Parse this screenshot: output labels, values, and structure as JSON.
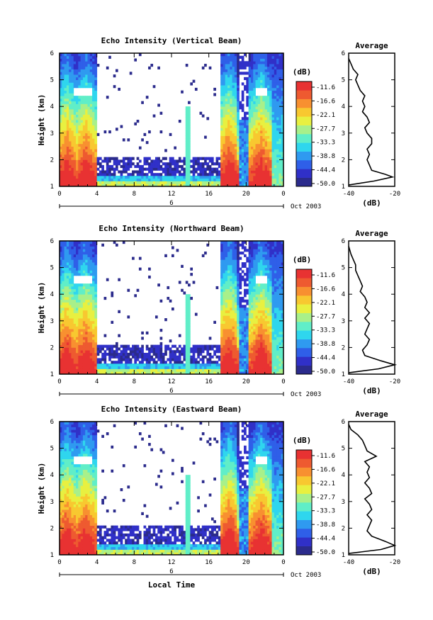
{
  "chart_data": [
    {
      "type": "heatmap",
      "title": "Echo Intensity (Vertical Beam)",
      "ylabel": "Height (km)",
      "xlim": [
        0,
        24
      ],
      "ylim": [
        1,
        6
      ],
      "x_ticks": [
        "0",
        "4",
        "8",
        "12",
        "16",
        "20",
        "0"
      ],
      "y_ticks": [
        "1",
        "2",
        "3",
        "4",
        "5",
        "6"
      ],
      "date_day": "6",
      "date_label": "Oct 2003",
      "colorbar": {
        "unit": "(dB)",
        "ticks": [
          "-11.6",
          "-16.6",
          "-22.1",
          "-27.7",
          "-33.3",
          "-38.8",
          "-44.4",
          "-50.0"
        ]
      },
      "average": {
        "title": "Average",
        "xlabel": "(dB)",
        "x_ticks": [
          "-40",
          "-20"
        ],
        "y_ticks": [
          "1",
          "2",
          "3",
          "4",
          "5",
          "6"
        ],
        "profile": [
          [
            1.05,
            -40
          ],
          [
            1.2,
            -29
          ],
          [
            1.35,
            -21
          ],
          [
            1.45,
            -24
          ],
          [
            1.6,
            -30
          ],
          [
            1.8,
            -31
          ],
          [
            2.0,
            -32
          ],
          [
            2.2,
            -31
          ],
          [
            2.4,
            -32
          ],
          [
            2.6,
            -30
          ],
          [
            2.8,
            -30
          ],
          [
            3.0,
            -32
          ],
          [
            3.2,
            -33
          ],
          [
            3.4,
            -31
          ],
          [
            3.6,
            -32
          ],
          [
            3.8,
            -34
          ],
          [
            4.0,
            -33
          ],
          [
            4.2,
            -34
          ],
          [
            4.4,
            -33
          ],
          [
            4.6,
            -35
          ],
          [
            4.8,
            -36
          ],
          [
            5.0,
            -37
          ],
          [
            5.2,
            -36
          ],
          [
            5.4,
            -38
          ],
          [
            5.6,
            -39
          ],
          [
            5.8,
            -40
          ]
        ]
      }
    },
    {
      "type": "heatmap",
      "title": "Echo Intensity (Northward Beam)",
      "ylabel": "Height (km)",
      "xlim": [
        0,
        24
      ],
      "ylim": [
        1,
        6
      ],
      "x_ticks": [
        "0",
        "4",
        "8",
        "12",
        "16",
        "20",
        "0"
      ],
      "y_ticks": [
        "1",
        "2",
        "3",
        "4",
        "5",
        "6"
      ],
      "date_day": "6",
      "date_label": "Oct 2003",
      "colorbar": {
        "unit": "(dB)",
        "ticks": [
          "-11.6",
          "-16.6",
          "-22.1",
          "-27.7",
          "-33.3",
          "-38.8",
          "-44.4",
          "-50.0"
        ]
      },
      "average": {
        "title": "Average",
        "xlabel": "(dB)",
        "x_ticks": [
          "-40",
          "-20"
        ],
        "y_ticks": [
          "1",
          "2",
          "3",
          "4",
          "5",
          "6"
        ],
        "profile": [
          [
            1.05,
            -40
          ],
          [
            1.2,
            -27
          ],
          [
            1.35,
            -20
          ],
          [
            1.5,
            -26
          ],
          [
            1.7,
            -33
          ],
          [
            1.9,
            -34
          ],
          [
            2.1,
            -32
          ],
          [
            2.3,
            -31
          ],
          [
            2.5,
            -33
          ],
          [
            2.7,
            -32
          ],
          [
            2.9,
            -31
          ],
          [
            3.1,
            -33
          ],
          [
            3.3,
            -31
          ],
          [
            3.5,
            -33
          ],
          [
            3.7,
            -32
          ],
          [
            3.9,
            -33
          ],
          [
            4.1,
            -35
          ],
          [
            4.3,
            -34
          ],
          [
            4.5,
            -35
          ],
          [
            4.7,
            -36
          ],
          [
            4.9,
            -37
          ],
          [
            5.1,
            -37
          ],
          [
            5.3,
            -38
          ],
          [
            5.5,
            -39
          ],
          [
            5.8,
            -40
          ]
        ]
      }
    },
    {
      "type": "heatmap",
      "title": "Echo Intensity (Eastward Beam)",
      "ylabel": "Height (km)",
      "xlabel": "Local Time",
      "xlim": [
        0,
        24
      ],
      "ylim": [
        1,
        6
      ],
      "x_ticks": [
        "0",
        "4",
        "8",
        "12",
        "16",
        "20",
        "0"
      ],
      "y_ticks": [
        "1",
        "2",
        "3",
        "4",
        "5",
        "6"
      ],
      "date_day": "6",
      "date_label": "Oct 2003",
      "colorbar": {
        "unit": "(dB)",
        "ticks": [
          "-11.6",
          "-16.6",
          "-22.1",
          "-27.7",
          "-33.3",
          "-38.8",
          "-44.4",
          "-50.0"
        ]
      },
      "average": {
        "title": "Average",
        "xlabel": "(dB)",
        "x_ticks": [
          "-40",
          "-20"
        ],
        "y_ticks": [
          "1",
          "2",
          "3",
          "4",
          "5",
          "6"
        ],
        "profile": [
          [
            1.05,
            -40
          ],
          [
            1.2,
            -26
          ],
          [
            1.35,
            -19
          ],
          [
            1.5,
            -24
          ],
          [
            1.7,
            -30
          ],
          [
            1.9,
            -32
          ],
          [
            2.1,
            -31
          ],
          [
            2.3,
            -30
          ],
          [
            2.5,
            -32
          ],
          [
            2.7,
            -30
          ],
          [
            2.9,
            -31
          ],
          [
            3.1,
            -33
          ],
          [
            3.3,
            -30
          ],
          [
            3.5,
            -31
          ],
          [
            3.7,
            -33
          ],
          [
            3.9,
            -31
          ],
          [
            4.1,
            -32
          ],
          [
            4.3,
            -31
          ],
          [
            4.5,
            -33
          ],
          [
            4.7,
            -28
          ],
          [
            4.9,
            -32
          ],
          [
            5.1,
            -33
          ],
          [
            5.3,
            -34
          ],
          [
            5.5,
            -36
          ],
          [
            5.7,
            -39
          ],
          [
            5.9,
            -40
          ]
        ]
      }
    }
  ]
}
